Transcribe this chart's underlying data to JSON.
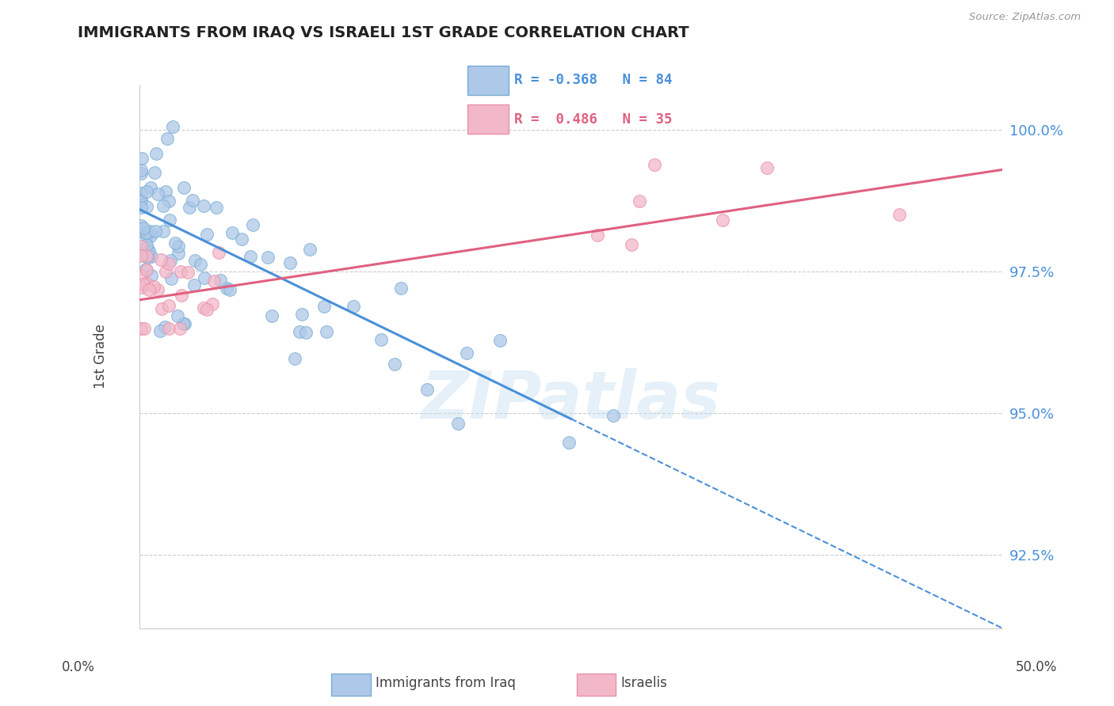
{
  "title": "IMMIGRANTS FROM IRAQ VS ISRAELI 1ST GRADE CORRELATION CHART",
  "source": "Source: ZipAtlas.com",
  "ylabel": "1st Grade",
  "yticks": [
    92.5,
    95.0,
    97.5,
    100.0
  ],
  "ytick_labels": [
    "92.5%",
    "95.0%",
    "97.5%",
    "100.0%"
  ],
  "xmin": 0.0,
  "xmax": 50.0,
  "ymin": 91.2,
  "ymax": 100.8,
  "blue_R": -0.368,
  "blue_N": 84,
  "pink_R": 0.486,
  "pink_N": 35,
  "blue_color": "#adc8e8",
  "blue_edge": "#7aadd4",
  "pink_color": "#f2b8c8",
  "pink_edge": "#e890aa",
  "trend_blue": "#4a90d9",
  "trend_pink": "#e06080",
  "watermark": "ZIPatlas",
  "legend_blue_label": "Immigrants from Iraq",
  "legend_pink_label": "Israelis",
  "blue_trend_x0": 0.0,
  "blue_trend_y0": 98.6,
  "blue_trend_x1": 50.0,
  "blue_trend_y1": 91.2,
  "blue_solid_xmax": 25.0,
  "pink_trend_x0": 0.0,
  "pink_trend_y0": 97.0,
  "pink_trend_x1": 50.0,
  "pink_trend_y1": 99.3
}
